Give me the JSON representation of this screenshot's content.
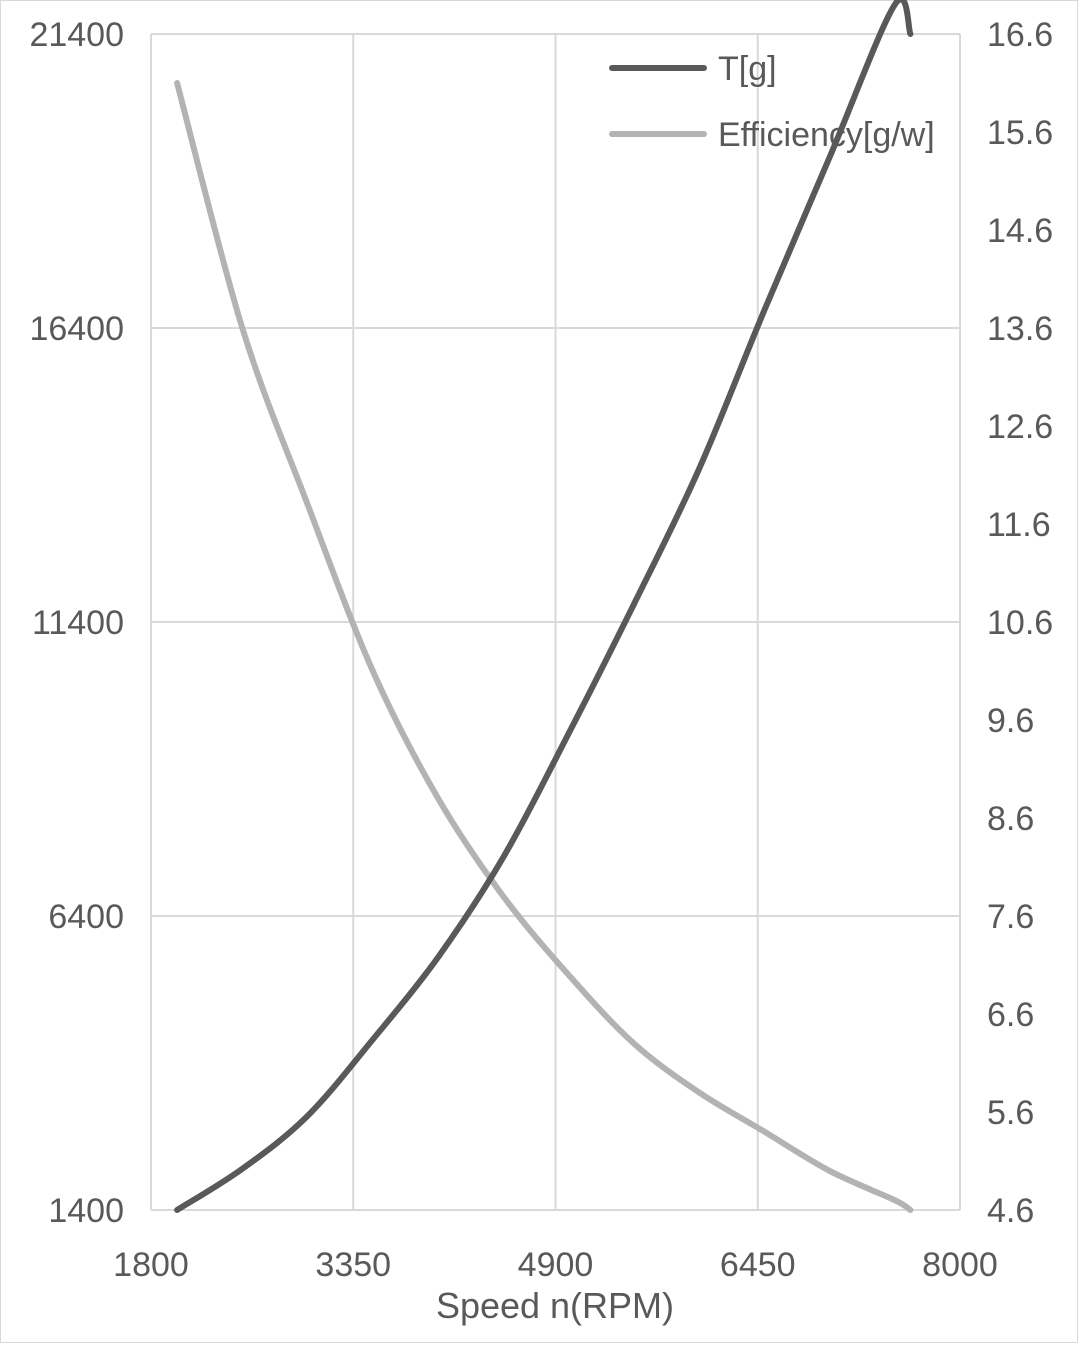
{
  "chart_data": {
    "type": "line",
    "xlabel": "Speed n(RPM)",
    "x_ticks": [
      "1800",
      "3350",
      "4900",
      "6450",
      "8000"
    ],
    "xlim": [
      1800,
      8000
    ],
    "y_left_ticks": [
      "1400",
      "6400",
      "11400",
      "16400",
      "21400"
    ],
    "ylim_left": [
      1400,
      21400
    ],
    "y_right_ticks": [
      "4.6",
      "5.6",
      "6.6",
      "7.6",
      "8.6",
      "9.6",
      "10.6",
      "11.6",
      "12.6",
      "13.6",
      "14.6",
      "15.6",
      "16.6"
    ],
    "ylim_right": [
      4.6,
      16.6
    ],
    "grid": true,
    "legend_position": "top-right",
    "series": [
      {
        "name": "T[g]",
        "axis": "left",
        "color": "#595959",
        "x": [
          2000,
          2500,
          3000,
          3500,
          4000,
          4500,
          5000,
          5500,
          6000,
          6500,
          7000,
          7500,
          7620
        ],
        "y": [
          1400,
          2100,
          3000,
          4300,
          5700,
          7400,
          9500,
          11700,
          14000,
          16700,
          19300,
          21900,
          21400
        ]
      },
      {
        "name": "Efficiency[g/w]",
        "axis": "right",
        "color": "#b3b3b3",
        "x": [
          2000,
          2500,
          3000,
          3500,
          4000,
          4500,
          5000,
          5500,
          6000,
          6500,
          7000,
          7500,
          7620
        ],
        "y": [
          16.1,
          13.6,
          11.8,
          10.1,
          8.8,
          7.8,
          7.0,
          6.3,
          5.8,
          5.4,
          5.0,
          4.7,
          4.6
        ]
      }
    ]
  }
}
